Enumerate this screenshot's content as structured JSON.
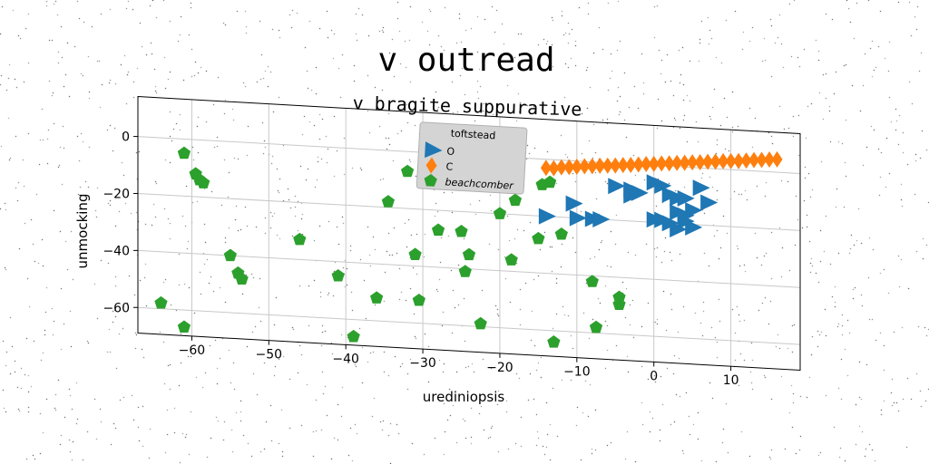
{
  "chart_data": {
    "type": "scatter",
    "title": "v outread",
    "subtitle": "v bragite suppurative",
    "xlabel": "urediniopsis",
    "ylabel": "unmocking",
    "xlim": [
      -67,
      19
    ],
    "ylim": [
      -69,
      14
    ],
    "xticks": [
      -60,
      -50,
      -40,
      -30,
      -20,
      -10,
      0,
      10
    ],
    "yticks": [
      0,
      -20,
      -40,
      -60
    ],
    "grid": true,
    "legend": {
      "title": "toftstead",
      "placement": "top-center"
    },
    "series": [
      {
        "name": "O",
        "marker": "triangle-right",
        "color": "#1f77b4",
        "points": [
          [
            -14,
            -20
          ],
          [
            -10.5,
            -15
          ],
          [
            -10,
            -20
          ],
          [
            -8,
            -20
          ],
          [
            -7,
            -20
          ],
          [
            -5,
            -8
          ],
          [
            -3,
            -9
          ],
          [
            -2,
            -10
          ],
          [
            0,
            -6
          ],
          [
            1,
            -7
          ],
          [
            2,
            -10
          ],
          [
            3,
            -11
          ],
          [
            4,
            -11
          ],
          [
            6,
            -7
          ],
          [
            7,
            -12
          ],
          [
            5,
            -15
          ],
          [
            3,
            -16
          ],
          [
            1,
            -19
          ],
          [
            2,
            -20
          ],
          [
            4,
            -19
          ],
          [
            5,
            -21
          ],
          [
            3,
            -22
          ],
          [
            0,
            -19
          ],
          [
            -3,
            -11
          ],
          [
            4,
            -17
          ]
        ]
      },
      {
        "name": "C",
        "marker": "diamond",
        "color": "#ff7f0e",
        "points": [
          [
            -14,
            -3
          ],
          [
            -13,
            -3
          ],
          [
            -12,
            -2.5
          ],
          [
            -11,
            -2.3
          ],
          [
            -10,
            -2
          ],
          [
            -9,
            -1.7
          ],
          [
            -8,
            -1.5
          ],
          [
            -7,
            -1.2
          ],
          [
            -6,
            -1
          ],
          [
            -5,
            -0.8
          ],
          [
            -4,
            -0.5
          ],
          [
            -3,
            -0.3
          ],
          [
            -2,
            0
          ],
          [
            -1,
            0.3
          ],
          [
            0,
            0.5
          ],
          [
            1,
            0.8
          ],
          [
            2,
            1
          ],
          [
            3,
            1.3
          ],
          [
            4,
            1.5
          ],
          [
            5,
            1.8
          ],
          [
            6,
            2
          ],
          [
            7,
            2.3
          ],
          [
            8,
            2.5
          ],
          [
            9,
            2.8
          ],
          [
            10,
            3
          ],
          [
            11,
            3.2
          ],
          [
            12,
            3.5
          ],
          [
            13,
            3.8
          ],
          [
            14,
            4
          ],
          [
            15,
            4.3
          ],
          [
            16,
            4.5
          ]
        ]
      },
      {
        "name": "beachcomber",
        "marker": "pentagon",
        "color": "#2ca02c",
        "points": [
          [
            -61,
            -5
          ],
          [
            -59.5,
            -12
          ],
          [
            -59,
            -14
          ],
          [
            -58.5,
            -15
          ],
          [
            -55,
            -40
          ],
          [
            -54,
            -46
          ],
          [
            -53.5,
            -48
          ],
          [
            -64,
            -58
          ],
          [
            -61,
            -66
          ],
          [
            -46,
            -33
          ],
          [
            -41,
            -45
          ],
          [
            -39,
            -66
          ],
          [
            -36,
            -52
          ],
          [
            -34.5,
            -18
          ],
          [
            -32,
            -7
          ],
          [
            -31,
            -36
          ],
          [
            -30.5,
            -52
          ],
          [
            -28,
            -27
          ],
          [
            -25,
            -27
          ],
          [
            -24.5,
            -41
          ],
          [
            -24,
            -35
          ],
          [
            -22.5,
            -59
          ],
          [
            -20,
            -20
          ],
          [
            -18.5,
            -36
          ],
          [
            -18,
            -15
          ],
          [
            -15,
            -28
          ],
          [
            -14.5,
            -9
          ],
          [
            -13.5,
            -8
          ],
          [
            -13,
            -64
          ],
          [
            -12,
            -26
          ],
          [
            -8,
            -42
          ],
          [
            -7.5,
            -58
          ],
          [
            -4.5,
            -47
          ],
          [
            -4.5,
            -49.5
          ]
        ]
      }
    ]
  }
}
